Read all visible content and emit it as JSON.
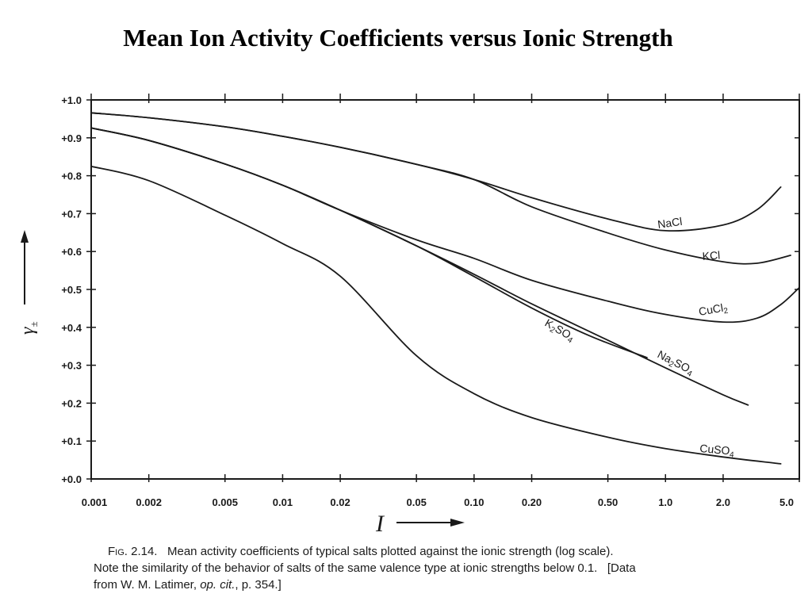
{
  "title": "Mean Ion Activity Coefficients versus Ionic Strength",
  "caption": {
    "figure": "Fig. 2.14.",
    "line1": "Mean activity coefficients of typical salts plotted against the ionic strength (log scale).",
    "line2": "Note the similarity of the behavior of salts of the same valence type at ionic strengths below 0.1.   [Data",
    "line3_a": "from W. M. Latimer, ",
    "line3_b": "op. cit.",
    "line3_c": ", p. 354.]"
  },
  "chart_data": {
    "type": "line",
    "x_scale": "log",
    "xlabel": "I",
    "ylabel": "γ±",
    "xlim": [
      0.001,
      5.0
    ],
    "ylim": [
      0.0,
      1.0
    ],
    "grid": false,
    "x_ticks": [
      {
        "value": 0.001,
        "label": "0.001"
      },
      {
        "value": 0.002,
        "label": "0.002"
      },
      {
        "value": 0.005,
        "label": "0.005"
      },
      {
        "value": 0.01,
        "label": "0.01"
      },
      {
        "value": 0.02,
        "label": "0.02"
      },
      {
        "value": 0.05,
        "label": "0.05"
      },
      {
        "value": 0.1,
        "label": "0.10"
      },
      {
        "value": 0.2,
        "label": "0.20"
      },
      {
        "value": 0.5,
        "label": "0.50"
      },
      {
        "value": 1.0,
        "label": "1.0"
      },
      {
        "value": 2.0,
        "label": "2.0"
      },
      {
        "value": 5.0,
        "label": "5.0"
      }
    ],
    "y_ticks": [
      {
        "value": 1.0,
        "label": "+1.0"
      },
      {
        "value": 0.9,
        "label": "+0.9"
      },
      {
        "value": 0.8,
        "label": "+0.8"
      },
      {
        "value": 0.7,
        "label": "+0.7"
      },
      {
        "value": 0.6,
        "label": "+0.6"
      },
      {
        "value": 0.5,
        "label": "+0.5"
      },
      {
        "value": 0.4,
        "label": "+0.4"
      },
      {
        "value": 0.3,
        "label": "+0.3"
      },
      {
        "value": 0.2,
        "label": "+0.2"
      },
      {
        "value": 0.1,
        "label": "+0.1"
      },
      {
        "value": 0.0,
        "label": "+0.0"
      }
    ],
    "series": [
      {
        "name": "NaCl",
        "x": [
          0.001,
          0.002,
          0.005,
          0.01,
          0.02,
          0.05,
          0.1,
          0.2,
          0.5,
          1.0,
          2.0,
          3.0,
          4.0
        ],
        "y": [
          0.966,
          0.953,
          0.929,
          0.904,
          0.875,
          0.83,
          0.79,
          0.742,
          0.686,
          0.655,
          0.67,
          0.71,
          0.77
        ]
      },
      {
        "name": "KCl",
        "x": [
          0.001,
          0.002,
          0.005,
          0.01,
          0.02,
          0.05,
          0.1,
          0.2,
          0.5,
          1.0,
          2.0,
          3.0,
          4.5
        ],
        "y": [
          0.966,
          0.953,
          0.929,
          0.904,
          0.875,
          0.83,
          0.79,
          0.718,
          0.649,
          0.604,
          0.573,
          0.569,
          0.59
        ]
      },
      {
        "name": "CuCl2",
        "x": [
          0.001,
          0.002,
          0.005,
          0.01,
          0.02,
          0.05,
          0.1,
          0.2,
          0.5,
          1.0,
          2.0,
          3.0,
          4.0,
          5.0
        ],
        "y": [
          0.926,
          0.893,
          0.831,
          0.775,
          0.709,
          0.631,
          0.582,
          0.524,
          0.469,
          0.434,
          0.414,
          0.424,
          0.46,
          0.505
        ]
      },
      {
        "name": "K2SO4",
        "x": [
          0.001,
          0.002,
          0.005,
          0.01,
          0.02,
          0.05,
          0.1,
          0.2,
          0.4,
          0.8
        ],
        "y": [
          0.926,
          0.893,
          0.831,
          0.775,
          0.709,
          0.615,
          0.534,
          0.451,
          0.378,
          0.32
        ]
      },
      {
        "name": "Na2SO4",
        "x": [
          0.001,
          0.002,
          0.005,
          0.01,
          0.02,
          0.05,
          0.1,
          0.2,
          0.5,
          1.0,
          2.0,
          2.7
        ],
        "y": [
          0.926,
          0.893,
          0.831,
          0.775,
          0.709,
          0.615,
          0.54,
          0.462,
          0.366,
          0.293,
          0.222,
          0.195
        ]
      },
      {
        "name": "CuSO4",
        "x": [
          0.001,
          0.002,
          0.005,
          0.01,
          0.02,
          0.05,
          0.1,
          0.2,
          0.5,
          1.0,
          2.0,
          4.0
        ],
        "y": [
          0.825,
          0.787,
          0.696,
          0.621,
          0.535,
          0.325,
          0.225,
          0.162,
          0.11,
          0.08,
          0.058,
          0.04
        ]
      }
    ]
  }
}
